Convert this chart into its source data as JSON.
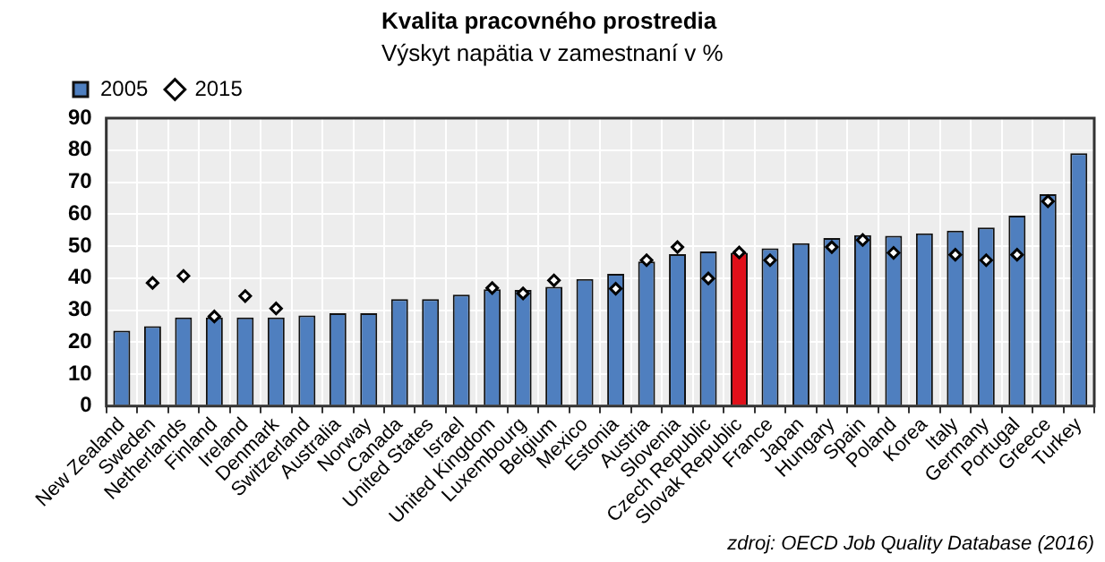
{
  "chart_data": {
    "type": "bar",
    "title": "Kvalita pracovného prostredia",
    "subtitle": "Výskyt napätia v zamestnaní v %",
    "categories": [
      "New Zealand",
      "Sweden",
      "Netherlands",
      "Finland",
      "Ireland",
      "Denmark",
      "Switzerland",
      "Australia",
      "Norway",
      "Canada",
      "United States",
      "Israel",
      "United Kingdom",
      "Luxembourg",
      "Belgium",
      "Mexico",
      "Estonia",
      "Austria",
      "Slovenia",
      "Czech Republic",
      "Slovak Republic",
      "France",
      "Japan",
      "Hungary",
      "Spain",
      "Poland",
      "Korea",
      "Italy",
      "Germany",
      "Portugal",
      "Greece",
      "Turkey"
    ],
    "series": [
      {
        "name": "2005",
        "colors": [
          "#4f7fbf",
          "#4f7fbf",
          "#4f7fbf",
          "#4f7fbf",
          "#4f7fbf",
          "#4f7fbf",
          "#4f7fbf",
          "#4f7fbf",
          "#4f7fbf",
          "#4f7fbf",
          "#4f7fbf",
          "#4f7fbf",
          "#4f7fbf",
          "#4f7fbf",
          "#4f7fbf",
          "#4f7fbf",
          "#4f7fbf",
          "#4f7fbf",
          "#4f7fbf",
          "#4f7fbf",
          "#e0101a",
          "#4f7fbf",
          "#4f7fbf",
          "#4f7fbf",
          "#4f7fbf",
          "#4f7fbf",
          "#4f7fbf",
          "#4f7fbf",
          "#4f7fbf",
          "#4f7fbf",
          "#4f7fbf",
          "#4f7fbf"
        ],
        "values": [
          23.6,
          25,
          27.7,
          27.7,
          27.7,
          27.7,
          28.3,
          29,
          29,
          33.4,
          33.4,
          34.8,
          36.5,
          36.3,
          37.3,
          39.7,
          41.3,
          45.2,
          47.5,
          48.3,
          47.9,
          49.3,
          50.9,
          52.5,
          53.4,
          53.2,
          54,
          54.8,
          55.8,
          59.5,
          66.2,
          79
        ]
      },
      {
        "name": "2015",
        "type": "scatter",
        "color": "#000000",
        "marker": "diamond",
        "values": [
          null,
          38.5,
          40.7,
          28,
          34.4,
          30.5,
          null,
          null,
          null,
          null,
          null,
          null,
          36.9,
          35.2,
          39.3,
          null,
          36.7,
          45.6,
          49.7,
          39.9,
          48,
          45.6,
          null,
          49.7,
          51.9,
          47.9,
          null,
          47.3,
          45.6,
          47.3,
          64,
          null
        ]
      }
    ],
    "ylim": [
      0,
      90
    ],
    "yticks": [
      0,
      10,
      20,
      30,
      40,
      50,
      60,
      70,
      80,
      90
    ],
    "grid": true,
    "legend": "top",
    "annotations": [
      "zdroj: OECD Job Quality Database (2016)"
    ]
  }
}
